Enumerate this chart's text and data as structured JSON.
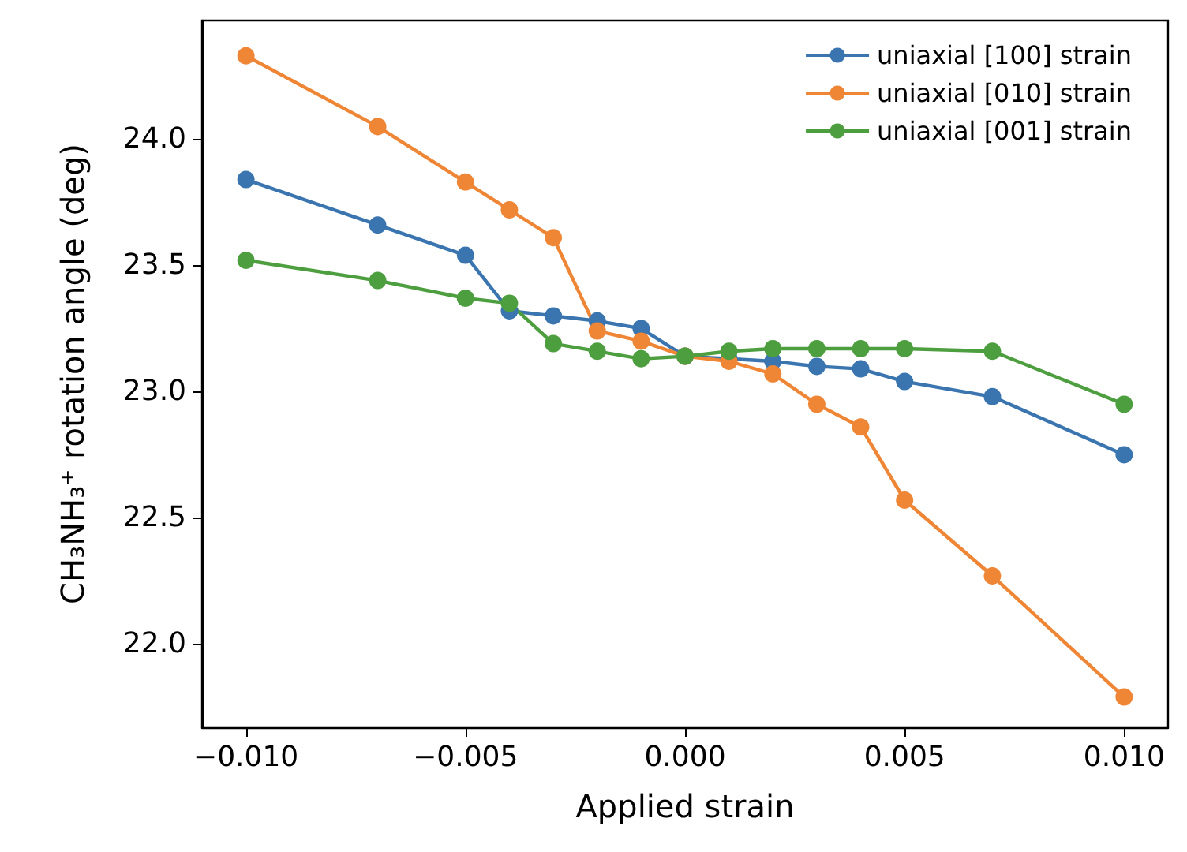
{
  "chart_data": {
    "type": "line",
    "xlabel": "Applied strain",
    "ylabel": "CH₃NH₃⁺ rotation angle (deg)",
    "x": [
      -0.01,
      -0.007,
      -0.005,
      -0.004,
      -0.003,
      -0.002,
      -0.001,
      0,
      0.001,
      0.002,
      0.003,
      0.004,
      0.005,
      0.007,
      0.01
    ],
    "series": [
      {
        "name": "uniaxial [100] strain",
        "color": "#3a75b0",
        "values": [
          23.84,
          23.66,
          23.54,
          23.32,
          23.3,
          23.28,
          23.25,
          23.14,
          23.13,
          23.12,
          23.1,
          23.09,
          23.04,
          22.98,
          22.75
        ]
      },
      {
        "name": "uniaxial [010] strain",
        "color": "#ef8636",
        "values": [
          24.33,
          24.05,
          23.83,
          23.72,
          23.61,
          23.24,
          23.2,
          23.14,
          23.12,
          23.07,
          22.95,
          22.86,
          22.57,
          22.27,
          21.79
        ]
      },
      {
        "name": "uniaxial [001] strain",
        "color": "#4d9e3f",
        "values": [
          23.52,
          23.44,
          23.37,
          23.35,
          23.19,
          23.16,
          23.13,
          23.14,
          23.16,
          23.17,
          23.17,
          23.17,
          23.17,
          23.16,
          22.95
        ]
      }
    ],
    "xlim": [
      -0.011,
      0.011
    ],
    "xticks": [
      {
        "value": -0.01,
        "label": "−0.010"
      },
      {
        "value": -0.005,
        "label": "−0.005"
      },
      {
        "value": 0,
        "label": "0.000"
      },
      {
        "value": 0.005,
        "label": "0.005"
      },
      {
        "value": 0.01,
        "label": "0.010"
      }
    ],
    "ylim": [
      21.67,
      24.47
    ],
    "yticks": [
      {
        "value": 22,
        "label": "22.0"
      },
      {
        "value": 22.5,
        "label": "22.5"
      },
      {
        "value": 23,
        "label": "23.0"
      },
      {
        "value": 23.5,
        "label": "23.5"
      },
      {
        "value": 24,
        "label": "24.0"
      }
    ],
    "grid": false,
    "legend": "top right",
    "marker": "circle",
    "line_style": "solid"
  }
}
